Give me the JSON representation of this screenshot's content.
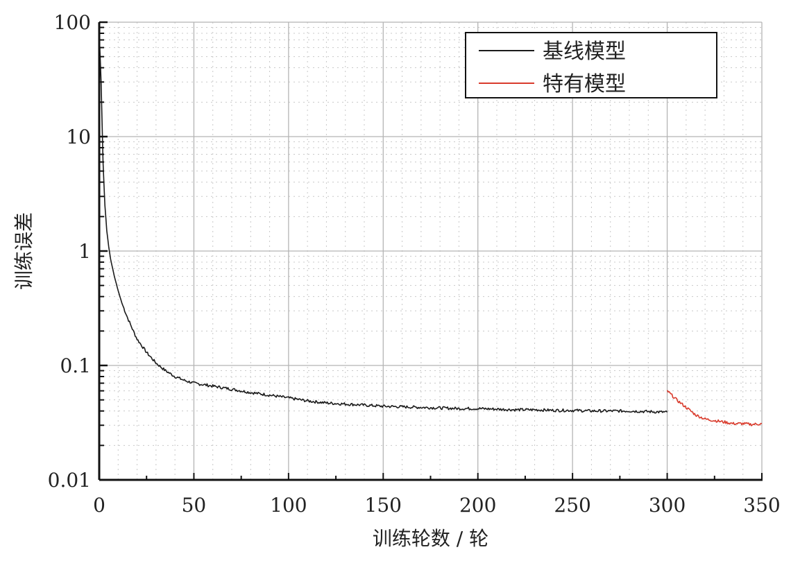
{
  "chart_data": {
    "type": "line",
    "xlabel": "训练轮数 / 轮",
    "ylabel": "训练误差",
    "x_scale": "linear",
    "y_scale": "log",
    "xlim": [
      0,
      350
    ],
    "ylim": [
      0.01,
      100
    ],
    "x_ticks": [
      0,
      50,
      100,
      150,
      200,
      250,
      300,
      350
    ],
    "x_tick_labels": [
      "0",
      "50",
      "100",
      "150",
      "200",
      "250",
      "300",
      "350"
    ],
    "y_ticks": [
      0.01,
      0.1,
      1,
      10,
      100
    ],
    "y_tick_labels": [
      "0.01",
      "0.1",
      "1",
      "10",
      "100"
    ],
    "grid": true,
    "legend_position": "top-right",
    "series": [
      {
        "name": "基线模型",
        "color": "#1a1a1a",
        "x": [
          0,
          1,
          2,
          3,
          4,
          5,
          6,
          8,
          10,
          12,
          15,
          18,
          20,
          25,
          30,
          35,
          40,
          45,
          50,
          60,
          70,
          80,
          90,
          100,
          110,
          120,
          130,
          140,
          150,
          160,
          170,
          180,
          190,
          200,
          210,
          220,
          230,
          240,
          250,
          260,
          270,
          280,
          290,
          300
        ],
        "y": [
          80,
          30,
          6,
          2.5,
          1.5,
          1.1,
          0.85,
          0.6,
          0.45,
          0.35,
          0.26,
          0.2,
          0.17,
          0.13,
          0.105,
          0.09,
          0.08,
          0.074,
          0.07,
          0.066,
          0.062,
          0.058,
          0.055,
          0.052,
          0.049,
          0.047,
          0.046,
          0.045,
          0.044,
          0.0435,
          0.043,
          0.0425,
          0.042,
          0.042,
          0.0415,
          0.041,
          0.041,
          0.0405,
          0.0405,
          0.04,
          0.04,
          0.04,
          0.0395,
          0.039
        ]
      },
      {
        "name": "特有模型",
        "color": "#d93a2b",
        "x": [
          300,
          305,
          310,
          315,
          320,
          325,
          330,
          335,
          340,
          345,
          350
        ],
        "y": [
          0.06,
          0.05,
          0.043,
          0.037,
          0.034,
          0.033,
          0.032,
          0.031,
          0.031,
          0.0305,
          0.031
        ]
      }
    ]
  }
}
